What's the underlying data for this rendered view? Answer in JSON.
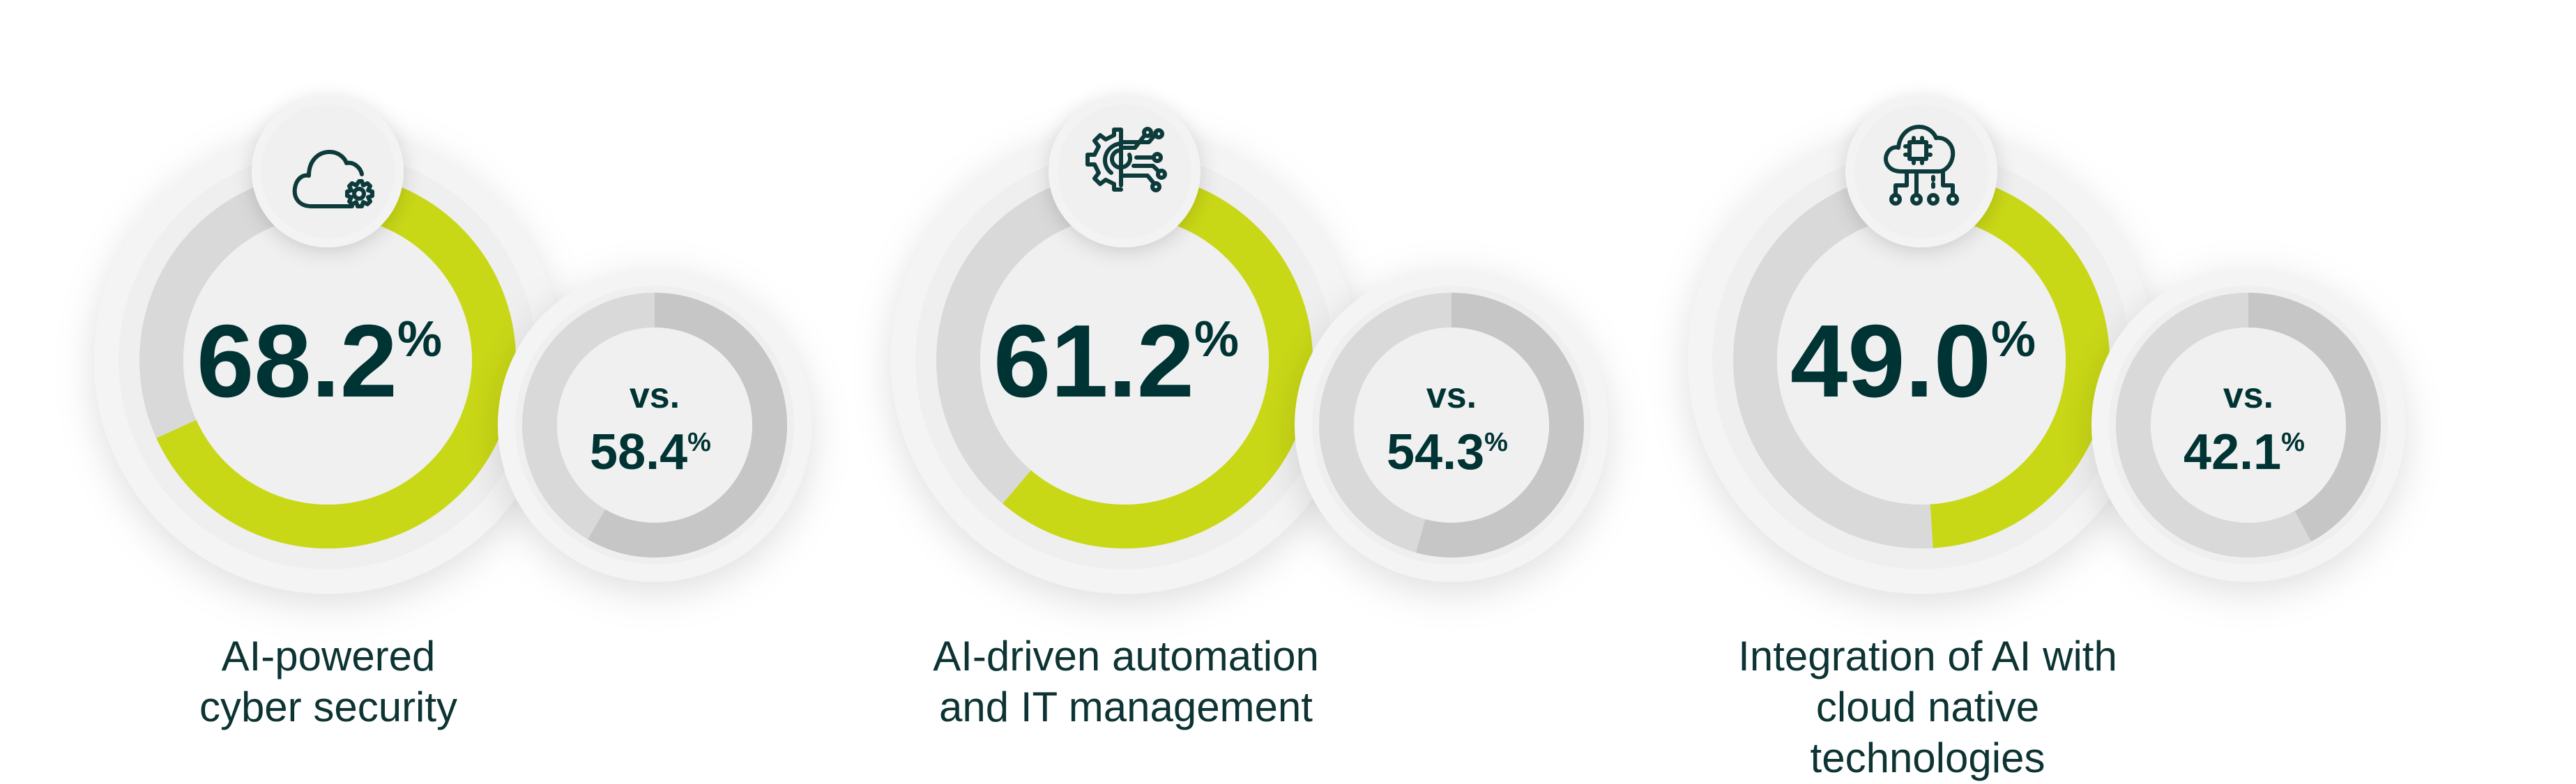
{
  "chart_data": {
    "type": "donut",
    "unit": "%",
    "items": [
      {
        "label": "AI-powered cyber security",
        "label_lines": [
          "AI-powered",
          "cyber security"
        ],
        "value": 68.2,
        "value_text": "68.2",
        "comparison_prefix": "vs.",
        "comparison": 58.4,
        "comparison_text": "58.4",
        "icon": "cloud-gear-icon"
      },
      {
        "label": "AI-driven automation and IT management",
        "label_lines": [
          "AI-driven automation",
          "and IT management"
        ],
        "value": 61.2,
        "value_text": "61.2",
        "comparison_prefix": "vs.",
        "comparison": 54.3,
        "comparison_text": "54.3",
        "icon": "gear-circuit-icon"
      },
      {
        "label": "Integration of AI with cloud native technologies",
        "label_lines": [
          "Integration of AI with",
          "cloud native",
          "technologies"
        ],
        "value": 49.0,
        "value_text": "49.0",
        "comparison_prefix": "vs.",
        "comparison": 42.1,
        "comparison_text": "42.1",
        "icon": "cloud-chip-network-icon"
      }
    ],
    "percent_sign": "%",
    "range": [
      0,
      100
    ]
  },
  "colors": {
    "accent": "#c9d816",
    "text": "#003333",
    "track": "#d9d9d9",
    "comparison_fill": "#c6c6c6",
    "inner": "#f0f0f0"
  }
}
